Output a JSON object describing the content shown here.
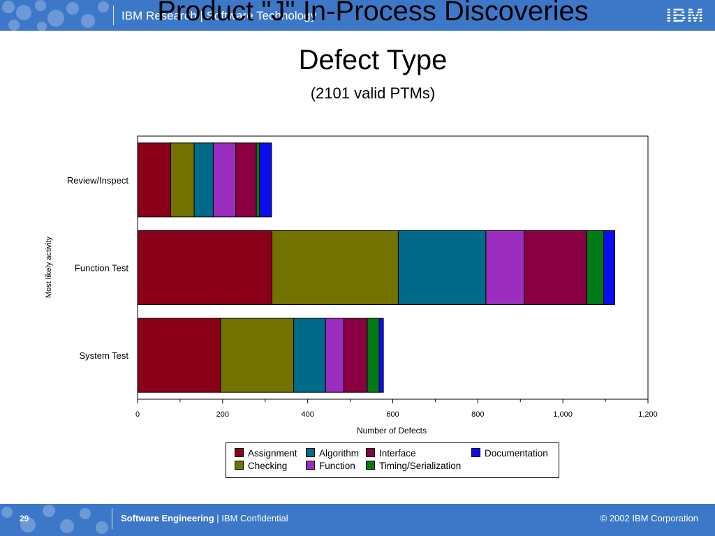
{
  "header": {
    "label": "IBM Research | Software Technology",
    "logo_text": "IBM"
  },
  "slide_title": "Product \"J\" In-Process Discoveries",
  "chart_data": {
    "type": "bar",
    "orientation": "horizontal",
    "stacked": true,
    "title": "Defect Type",
    "subtitle": "(2101 valid PTMs)",
    "xlabel": "Number of Defects",
    "ylabel": "Most likely activity",
    "xlim": [
      0,
      1200
    ],
    "xticks": [
      0,
      200,
      400,
      600,
      800,
      1000,
      1200
    ],
    "xtick_labels": [
      "0",
      "200",
      "400",
      "600",
      "800",
      "1,000",
      "1,200"
    ],
    "categories": [
      "Review/Inspect",
      "Function Test",
      "System Test"
    ],
    "series": [
      {
        "name": "Assignment",
        "color": "#8b0019",
        "values": [
          78,
          316,
          195
        ]
      },
      {
        "name": "Checking",
        "color": "#727200",
        "values": [
          55,
          297,
          172
        ]
      },
      {
        "name": "Algorithm",
        "color": "#006a8a",
        "values": [
          45,
          206,
          75
        ]
      },
      {
        "name": "Function",
        "color": "#9b2dbf",
        "values": [
          53,
          90,
          43
        ]
      },
      {
        "name": "Interface",
        "color": "#8a0043",
        "values": [
          48,
          147,
          55
        ]
      },
      {
        "name": "Timing/Serialization",
        "color": "#007a14",
        "values": [
          8,
          40,
          28
        ]
      },
      {
        "name": "Documentation",
        "color": "#0c0cf2",
        "values": [
          28,
          26,
          10
        ]
      }
    ],
    "legend_position": "bottom",
    "grid": false
  },
  "footer": {
    "page_number": "29",
    "section": "Software Engineering",
    "separator_text": "| IBM   Confidential",
    "copyright": "© 2002 IBM Corporation"
  }
}
